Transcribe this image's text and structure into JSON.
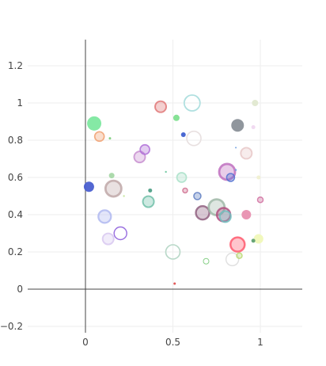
{
  "chart_data": {
    "type": "scatter",
    "title": "",
    "xlabel": "",
    "ylabel": "",
    "xlim": [
      -0.33,
      1.23
    ],
    "ylim": [
      -0.23,
      1.36
    ],
    "grid": true,
    "legend": "none",
    "x_ticks": [
      {
        "value": 0,
        "label": "0"
      },
      {
        "value": 0.5,
        "label": "0.5"
      },
      {
        "value": 1,
        "label": "1"
      }
    ],
    "y_ticks": [
      {
        "value": -0.2,
        "label": "−0.2"
      },
      {
        "value": 0,
        "label": "0"
      },
      {
        "value": 0.2,
        "label": "0.2"
      },
      {
        "value": 0.4,
        "label": "0.4"
      },
      {
        "value": 0.6,
        "label": "0.6"
      },
      {
        "value": 0.8,
        "label": "0.8"
      },
      {
        "value": 1,
        "label": "1"
      },
      {
        "value": 1.2,
        "label": "1.2"
      }
    ],
    "points": [
      {
        "x": 0.05,
        "y": 0.89,
        "size": 9,
        "color": "#7ee8a0",
        "style": "fill"
      },
      {
        "x": 0.08,
        "y": 0.82,
        "size": 6,
        "color": "#f0a070",
        "style": "ring"
      },
      {
        "x": 0.14,
        "y": 0.81,
        "size": 1.5,
        "color": "#80d080",
        "style": "fill"
      },
      {
        "x": 0.02,
        "y": 0.55,
        "size": 6.5,
        "color": "#4a5fd0",
        "style": "fill"
      },
      {
        "x": 0.15,
        "y": 0.61,
        "size": 3.5,
        "color": "#a8d8a8",
        "style": "fill"
      },
      {
        "x": 0.16,
        "y": 0.54,
        "size": 10,
        "color": "#c0a8a8",
        "style": "ring"
      },
      {
        "x": 0.22,
        "y": 0.5,
        "size": 1.2,
        "color": "#c8e8a0",
        "style": "fill"
      },
      {
        "x": 0.11,
        "y": 0.39,
        "size": 8,
        "color": "#b0b8f0",
        "style": "ring"
      },
      {
        "x": 0.13,
        "y": 0.27,
        "size": 7,
        "color": "#d8c8f0",
        "style": "ring"
      },
      {
        "x": 0.2,
        "y": 0.3,
        "size": 8,
        "color": "#9a70e0",
        "style": "outline"
      },
      {
        "x": 0.31,
        "y": 0.71,
        "size": 7,
        "color": "#c890d0",
        "style": "ring"
      },
      {
        "x": 0.34,
        "y": 0.75,
        "size": 6,
        "color": "#b070d8",
        "style": "ring"
      },
      {
        "x": 0.37,
        "y": 0.53,
        "size": 2.5,
        "color": "#50a088",
        "style": "fill"
      },
      {
        "x": 0.36,
        "y": 0.47,
        "size": 7,
        "color": "#70c0a8",
        "style": "ring"
      },
      {
        "x": 0.43,
        "y": 0.98,
        "size": 7,
        "color": "#e07878",
        "style": "ring"
      },
      {
        "x": 0.46,
        "y": 0.63,
        "size": 1.2,
        "color": "#70c8a0",
        "style": "fill"
      },
      {
        "x": 0.52,
        "y": 0.92,
        "size": 4,
        "color": "#80e090",
        "style": "fill"
      },
      {
        "x": 0.56,
        "y": 0.83,
        "size": 3,
        "color": "#4060d0",
        "style": "fill"
      },
      {
        "x": 0.61,
        "y": 1.0,
        "size": 10,
        "color": "#b0e0e0",
        "style": "outline"
      },
      {
        "x": 0.62,
        "y": 0.81,
        "size": 9,
        "color": "#e8e0e0",
        "style": "outline"
      },
      {
        "x": 0.55,
        "y": 0.6,
        "size": 6,
        "color": "#a8e0c8",
        "style": "ring"
      },
      {
        "x": 0.57,
        "y": 0.53,
        "size": 3,
        "color": "#d07090",
        "style": "ring"
      },
      {
        "x": 0.5,
        "y": 0.2,
        "size": 9,
        "color": "#b8d8c8",
        "style": "outline"
      },
      {
        "x": 0.51,
        "y": 0.03,
        "size": 1.5,
        "color": "#e05050",
        "style": "fill"
      },
      {
        "x": 0.64,
        "y": 0.5,
        "size": 4.5,
        "color": "#5a7ac0",
        "style": "ring"
      },
      {
        "x": 0.67,
        "y": 0.41,
        "size": 8.5,
        "color": "#906080",
        "style": "ring"
      },
      {
        "x": 0.69,
        "y": 0.15,
        "size": 3.5,
        "color": "#88d088",
        "style": "outline"
      },
      {
        "x": 0.75,
        "y": 0.44,
        "size": 10,
        "color": "#a0b8a8",
        "style": "ring"
      },
      {
        "x": 0.79,
        "y": 0.4,
        "size": 8.5,
        "color": "#b05080",
        "style": "ring"
      },
      {
        "x": 0.8,
        "y": 0.39,
        "size": 7,
        "color": "#70c0c0",
        "style": "ring"
      },
      {
        "x": 0.81,
        "y": 0.63,
        "size": 10,
        "color": "#c070c0",
        "style": "ring"
      },
      {
        "x": 0.83,
        "y": 0.6,
        "size": 5,
        "color": "#5070d0",
        "style": "ring"
      },
      {
        "x": 0.86,
        "y": 0.64,
        "size": 1.2,
        "color": "#70a0e0",
        "style": "fill"
      },
      {
        "x": 0.84,
        "y": 0.16,
        "size": 8,
        "color": "#e0e0e0",
        "style": "outline"
      },
      {
        "x": 0.87,
        "y": 0.24,
        "size": 9,
        "color": "#ff5a6e",
        "style": "ring"
      },
      {
        "x": 0.88,
        "y": 0.18,
        "size": 3.5,
        "color": "#b8d870",
        "style": "ring"
      },
      {
        "x": 0.87,
        "y": 0.88,
        "size": 8,
        "color": "#8a9098",
        "style": "fill"
      },
      {
        "x": 0.86,
        "y": 0.76,
        "size": 1,
        "color": "#70a0e0",
        "style": "fill"
      },
      {
        "x": 0.92,
        "y": 0.73,
        "size": 7,
        "color": "#e8c8c8",
        "style": "ring"
      },
      {
        "x": 0.96,
        "y": 0.87,
        "size": 2.5,
        "color": "#f0d8f0",
        "style": "fill"
      },
      {
        "x": 0.97,
        "y": 1.0,
        "size": 4,
        "color": "#e0e8d0",
        "style": "fill"
      },
      {
        "x": 0.99,
        "y": 0.6,
        "size": 2.5,
        "color": "#f0f0d0",
        "style": "fill"
      },
      {
        "x": 1.0,
        "y": 0.48,
        "size": 3.5,
        "color": "#d070a0",
        "style": "ring"
      },
      {
        "x": 0.92,
        "y": 0.4,
        "size": 6,
        "color": "#e890b0",
        "style": "fill"
      },
      {
        "x": 0.99,
        "y": 0.27,
        "size": 6,
        "color": "#f0f8b8",
        "style": "fill"
      },
      {
        "x": 0.96,
        "y": 0.26,
        "size": 2.5,
        "color": "#60a070",
        "style": "fill"
      }
    ]
  }
}
